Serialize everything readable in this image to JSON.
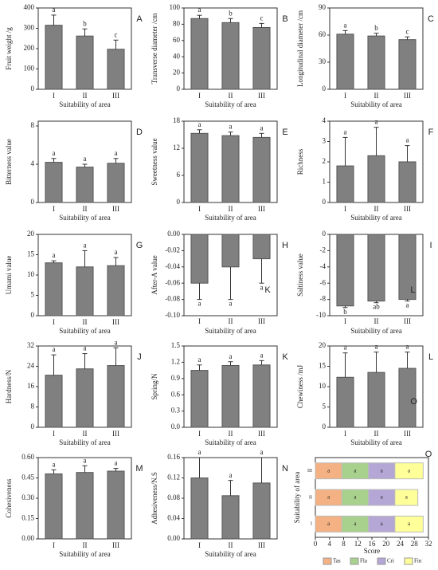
{
  "chart_data": [
    {
      "type": "bar",
      "panel": "A",
      "ylabel": "Fruit weight /g",
      "xlabel": "Suitability of area",
      "categories": [
        "I",
        "II",
        "III"
      ],
      "values": [
        315,
        262,
        197
      ],
      "errors": [
        50,
        35,
        45
      ],
      "letters": [
        "a",
        "b",
        "c"
      ],
      "color": "#808080",
      "ylim": [
        0,
        400
      ],
      "yticks": [
        0,
        100,
        200,
        300,
        400
      ]
    },
    {
      "type": "bar",
      "panel": "B",
      "ylabel": "Transverse diameter /cm",
      "xlabel": "Suitability of area",
      "categories": [
        "I",
        "II",
        "III"
      ],
      "values": [
        87,
        82,
        76
      ],
      "errors": [
        4,
        5,
        5
      ],
      "letters": [
        "a",
        "b",
        "c"
      ],
      "color": "#808080",
      "ylim": [
        0,
        100
      ],
      "yticks": [
        0,
        20,
        40,
        60,
        80,
        100
      ]
    },
    {
      "type": "bar",
      "panel": "C",
      "ylabel": "Longitudinal diameter /cm",
      "xlabel": "Suitability of area",
      "categories": [
        "I",
        "II",
        "III"
      ],
      "values": [
        61,
        59,
        55
      ],
      "errors": [
        4,
        3,
        3
      ],
      "letters": [
        "a",
        "b",
        "c"
      ],
      "color": "#808080",
      "ylim": [
        0,
        90
      ],
      "yticks": [
        0,
        30,
        60,
        90
      ]
    },
    {
      "type": "bar",
      "panel": "D",
      "ylabel": "Bitterness value",
      "xlabel": "Suitability of area",
      "categories": [
        "I",
        "II",
        "III"
      ],
      "values": [
        4.2,
        3.7,
        4.1
      ],
      "errors": [
        0.4,
        0.3,
        0.5
      ],
      "letters": [
        "a",
        "a",
        "a"
      ],
      "color": "#808080",
      "ylim": [
        0,
        8.5
      ],
      "yticks": [
        0,
        4,
        8
      ]
    },
    {
      "type": "bar",
      "panel": "E",
      "ylabel": "Sweetness value",
      "xlabel": "Suitability of area",
      "categories": [
        "I",
        "II",
        "III"
      ],
      "values": [
        15.3,
        14.8,
        14.4
      ],
      "errors": [
        0.8,
        0.8,
        0.9
      ],
      "letters": [
        "a",
        "a",
        "a"
      ],
      "color": "#808080",
      "ylim": [
        0,
        18
      ],
      "yticks": [
        0,
        6,
        12,
        18
      ]
    },
    {
      "type": "bar",
      "panel": "F",
      "ylabel": "Richness",
      "xlabel": "Suitability of area",
      "categories": [
        "I",
        "II",
        "III"
      ],
      "values": [
        1.8,
        2.3,
        2.0
      ],
      "errors": [
        1.4,
        1.4,
        0.8
      ],
      "letters": [
        "a",
        "a",
        "a"
      ],
      "color": "#808080",
      "ylim": [
        0,
        4
      ],
      "yticks": [
        0,
        1,
        2,
        3,
        4
      ]
    },
    {
      "type": "bar",
      "panel": "G",
      "ylabel": "Umami value",
      "xlabel": "Suitability of area",
      "categories": [
        "I",
        "II",
        "III"
      ],
      "values": [
        13,
        12,
        12.3
      ],
      "errors": [
        0.5,
        4,
        2
      ],
      "letters": [
        "a",
        "a",
        "a"
      ],
      "color": "#808080",
      "ylim": [
        0,
        20
      ],
      "yticks": [
        0,
        5,
        10,
        15,
        20
      ]
    },
    {
      "type": "bar",
      "panel": "H",
      "ylabel": "After-A value",
      "xlabel": "Suitability of area",
      "categories": [
        "I",
        "II",
        "III"
      ],
      "values": [
        -0.06,
        -0.04,
        -0.03
      ],
      "errors": [
        0.02,
        0.04,
        0.03
      ],
      "letters": [
        "a",
        "a",
        "a"
      ],
      "annotations": [
        "K"
      ],
      "color": "#808080",
      "ylim": [
        -0.1,
        0
      ],
      "yticks": [
        {
          "value": 0,
          "label": "0.00"
        },
        -0.02,
        -0.04,
        -0.06,
        -0.08,
        {
          "value": -0.1,
          "label": "-0.10"
        }
      ]
    },
    {
      "type": "bar",
      "panel": "I",
      "ylabel": "Saltiness value",
      "xlabel": "Suitability of area",
      "categories": [
        "I",
        "II",
        "III"
      ],
      "values": [
        -8.8,
        -8.2,
        -8.0
      ],
      "errors": [
        0.2,
        0.2,
        0.2
      ],
      "letters": [
        "b",
        "ab",
        "a"
      ],
      "annotations": [
        "L"
      ],
      "color": "#808080",
      "ylim": [
        -10,
        0
      ],
      "yticks": [
        0,
        -2,
        -4,
        -6,
        -8,
        -10
      ]
    },
    {
      "type": "bar",
      "panel": "J",
      "ylabel": "Hardness/N",
      "xlabel": "Suitability of area",
      "categories": [
        "I",
        "II",
        "III"
      ],
      "values": [
        20.5,
        23,
        24.3
      ],
      "errors": [
        8,
        6,
        7
      ],
      "letters": [
        "a",
        "a",
        "a"
      ],
      "color": "#808080",
      "ylim": [
        0,
        32
      ],
      "yticks": [
        0,
        8,
        16,
        24,
        32
      ]
    },
    {
      "type": "bar",
      "panel": "K",
      "ylabel": "Spring/N",
      "xlabel": "Suitability of area",
      "categories": [
        "I",
        "II",
        "III"
      ],
      "values": [
        1.05,
        1.14,
        1.15
      ],
      "errors": [
        0.1,
        0.07,
        0.08
      ],
      "letters": [
        "a",
        "a",
        "a"
      ],
      "color": "#808080",
      "ylim": [
        0,
        1.5
      ],
      "yticks": [
        {
          "value": 0,
          "label": "0.0"
        },
        0.3,
        0.6,
        0.9,
        1.2,
        1.5
      ]
    },
    {
      "type": "bar",
      "panel": "L",
      "ylabel": "Chewiness /mJ",
      "xlabel": "Suitability of area",
      "categories": [
        "I",
        "II",
        "III"
      ],
      "values": [
        12.3,
        13.5,
        14.5
      ],
      "errors": [
        6,
        5,
        4
      ],
      "letters": [
        "a",
        "a",
        "a"
      ],
      "annotations": [
        "O"
      ],
      "color": "#808080",
      "ylim": [
        0,
        20
      ],
      "yticks": [
        0,
        5,
        10,
        15,
        20
      ]
    },
    {
      "type": "bar",
      "panel": "M",
      "ylabel": "Cohesiveness",
      "xlabel": "Suitability of area",
      "categories": [
        "I",
        "II",
        "III"
      ],
      "values": [
        0.48,
        0.49,
        0.5
      ],
      "errors": [
        0.03,
        0.05,
        0.02
      ],
      "letters": [
        "a",
        "a",
        "a"
      ],
      "color": "#808080",
      "ylim": [
        0,
        0.6
      ],
      "yticks": [
        {
          "value": 0,
          "label": "0.00"
        },
        0.15,
        {
          "value": 0.3,
          "label": "0.30"
        },
        0.45,
        {
          "value": 0.6,
          "label": "0.60"
        }
      ]
    },
    {
      "type": "bar",
      "panel": "N",
      "ylabel": "Adhesiveness/N.S",
      "xlabel": "Suitability of area",
      "categories": [
        "I",
        "II",
        "III"
      ],
      "values": [
        0.12,
        0.085,
        0.11
      ],
      "errors": [
        0.04,
        0.03,
        0.05
      ],
      "letters": [
        "a",
        "a",
        "a"
      ],
      "color": "#808080",
      "ylim": [
        0,
        0.16
      ],
      "yticks": [
        {
          "value": 0,
          "label": "0.00"
        },
        0.04,
        0.08,
        0.12,
        0.16
      ]
    },
    {
      "type": "stacked-barh",
      "panel": "O",
      "ylabel": "Suitability of area",
      "xlabel": "Score",
      "categories": [
        "I",
        "II",
        "III"
      ],
      "xlim": [
        0,
        32
      ],
      "xticks": [
        0,
        4,
        8,
        12,
        16,
        20,
        24,
        28,
        32
      ],
      "series": [
        {
          "name": "Tas",
          "color": "#f4b183",
          "values": [
            7.5,
            7.5,
            7.5
          ],
          "labels": [
            "a",
            "a",
            "a"
          ]
        },
        {
          "name": "Fla",
          "color": "#a9d18e",
          "values": [
            7.5,
            7.5,
            7.5
          ],
          "labels": [
            "a",
            "a",
            "a"
          ]
        },
        {
          "name": "Cri",
          "color": "#b4a7d6",
          "values": [
            7.5,
            7.5,
            7.5
          ],
          "labels": [
            "a",
            "a",
            "a"
          ]
        },
        {
          "name": "Fin",
          "color": "#ffff99",
          "values": [
            8,
            6.5,
            8
          ],
          "labels": [
            "a",
            "a",
            "a"
          ]
        }
      ]
    }
  ]
}
